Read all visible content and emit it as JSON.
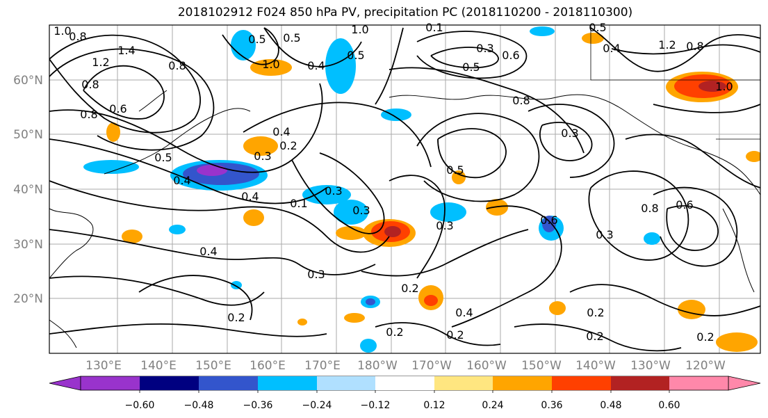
{
  "title": "2018102912 F024 850 hPa PV, precipitation PC (2018110200 - 2018110300)",
  "latitude_labels": [
    "60°N",
    "50°N",
    "40°N",
    "30°N",
    "20°N"
  ],
  "longitude_labels": [
    "130°E",
    "140°E",
    "150°E",
    "160°E",
    "170°E",
    "180°W",
    "170°W",
    "160°W",
    "150°W",
    "140°W",
    "130°W",
    "120°W"
  ],
  "colorbar": {
    "colors": [
      "#9933cc",
      "#000080",
      "#3355cc",
      "#00bfff",
      "#b0e0ff",
      "#ffffff",
      "#ffe680",
      "#ffa500",
      "#ff4000",
      "#b22222",
      "#ff88aa"
    ],
    "tick_labels": [
      "−0.60",
      "−0.48",
      "−0.36",
      "−0.24",
      "−0.12",
      "0.12",
      "0.24",
      "0.36",
      "0.48",
      "0.60"
    ]
  },
  "contour_labels": [
    "1.0",
    "0.8",
    "1.4",
    "1.2",
    "0.8",
    "0.6",
    "0.8",
    "0.5",
    "1.0",
    "0.8",
    "0.5",
    "1.0",
    "0.4",
    "0.5",
    "0.1",
    "0.3",
    "0.6",
    "0.8",
    "0.4",
    "0.5",
    "0.8",
    "1.2",
    "1.0",
    "0.5",
    "0.4",
    "0.2",
    "0.3",
    "0.5",
    "0.4",
    "0.3",
    "0.4",
    "0.1",
    "0.3",
    "0.5",
    "0.3",
    "0.6",
    "0.3",
    "0.8",
    "0.6",
    "0.3",
    "0.4",
    "0.3",
    "0.2",
    "0.2",
    "0.4",
    "0.2",
    "0.2",
    "0.2",
    "0.2",
    "0.2"
  ]
}
